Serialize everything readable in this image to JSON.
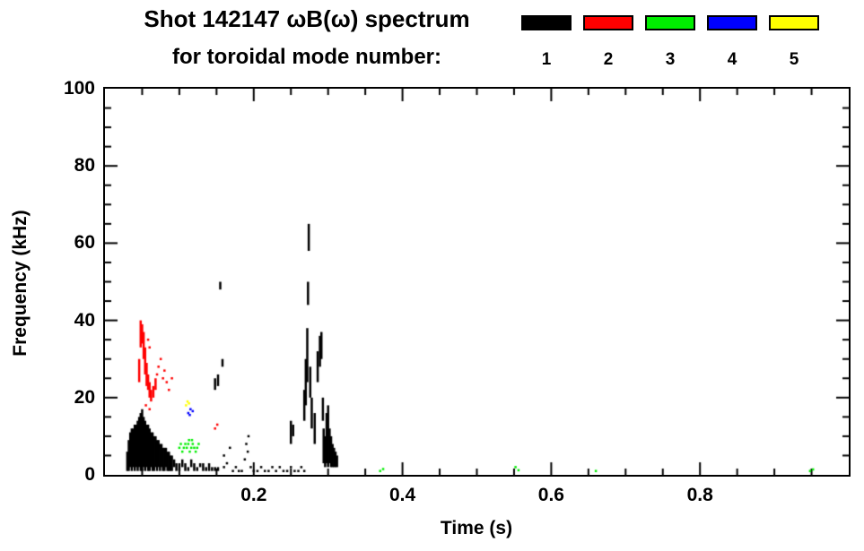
{
  "page": {
    "background": "#ffffff",
    "text_color": "#000000"
  },
  "chart_data": {
    "type": "scatter",
    "title": "Shot 142147 ωB(ω) spectrum",
    "subtitle": "for toroidal mode number:",
    "xlabel": "Time (s)",
    "ylabel": "Frequency (kHz)",
    "xlim": [
      0,
      1.0
    ],
    "ylim": [
      0,
      100
    ],
    "xticks": [
      0.2,
      0.4,
      0.6,
      0.8
    ],
    "xtick_labels": [
      "0.2",
      "0.4",
      "0.6",
      "0.8"
    ],
    "yticks": [
      0,
      20,
      40,
      60,
      80,
      100
    ],
    "ytick_labels": [
      "0",
      "20",
      "40",
      "60",
      "80",
      "100"
    ],
    "x_minor_step": 0.05,
    "y_minor_step": 5,
    "grid": false,
    "legend": {
      "position": "top-right",
      "entries": [
        {
          "label": "1",
          "color": "#000000"
        },
        {
          "label": "2",
          "color": "#ff0000"
        },
        {
          "label": "3",
          "color": "#00ee00"
        },
        {
          "label": "4",
          "color": "#0000ff"
        },
        {
          "label": "5",
          "color": "#ffff00"
        }
      ]
    },
    "series": [
      {
        "name": "mode-1",
        "mode": "1",
        "color": "#000000",
        "segments": [
          [
            0.03,
            1,
            6
          ],
          [
            0.032,
            1,
            9
          ],
          [
            0.034,
            2,
            11
          ],
          [
            0.036,
            1,
            12
          ],
          [
            0.038,
            2,
            12
          ],
          [
            0.04,
            1,
            13
          ],
          [
            0.042,
            2,
            13
          ],
          [
            0.044,
            1,
            14
          ],
          [
            0.046,
            2,
            15
          ],
          [
            0.048,
            1,
            16
          ],
          [
            0.05,
            1,
            17
          ],
          [
            0.052,
            2,
            15
          ],
          [
            0.054,
            1,
            14
          ],
          [
            0.056,
            2,
            13
          ],
          [
            0.058,
            1,
            13
          ],
          [
            0.06,
            1,
            12
          ],
          [
            0.062,
            2,
            11
          ],
          [
            0.064,
            1,
            11
          ],
          [
            0.066,
            1,
            10
          ],
          [
            0.068,
            2,
            10
          ],
          [
            0.07,
            1,
            9
          ],
          [
            0.072,
            2,
            9
          ],
          [
            0.074,
            1,
            8
          ],
          [
            0.076,
            2,
            8
          ],
          [
            0.078,
            1,
            7
          ],
          [
            0.08,
            1,
            7
          ],
          [
            0.082,
            2,
            7
          ],
          [
            0.084,
            1,
            6
          ],
          [
            0.086,
            1,
            6
          ],
          [
            0.088,
            1,
            5
          ],
          [
            0.09,
            1,
            5
          ],
          [
            0.093,
            2,
            4
          ],
          [
            0.096,
            1,
            3
          ],
          [
            0.1,
            1,
            3
          ],
          [
            0.104,
            2,
            4
          ],
          [
            0.108,
            1,
            3
          ],
          [
            0.112,
            1,
            2
          ],
          [
            0.116,
            2,
            4
          ],
          [
            0.12,
            1,
            3
          ],
          [
            0.124,
            1,
            2
          ],
          [
            0.128,
            2,
            3
          ],
          [
            0.132,
            1,
            3
          ],
          [
            0.136,
            1,
            2
          ],
          [
            0.14,
            1,
            3
          ],
          [
            0.144,
            1,
            2
          ],
          [
            0.148,
            1,
            2
          ],
          [
            0.152,
            1,
            2
          ],
          [
            0.148,
            22,
            25
          ],
          [
            0.152,
            23,
            26
          ],
          [
            0.155,
            48,
            50
          ],
          [
            0.158,
            28,
            30
          ],
          [
            0.25,
            8,
            14
          ],
          [
            0.253,
            10,
            13
          ],
          [
            0.268,
            14,
            22
          ],
          [
            0.27,
            18,
            30
          ],
          [
            0.272,
            24,
            38
          ],
          [
            0.273,
            44,
            50
          ],
          [
            0.274,
            58,
            65
          ],
          [
            0.276,
            20,
            28
          ],
          [
            0.278,
            12,
            20
          ],
          [
            0.282,
            8,
            16
          ],
          [
            0.286,
            24,
            32
          ],
          [
            0.289,
            28,
            36
          ],
          [
            0.291,
            30,
            37
          ],
          [
            0.293,
            14,
            20
          ],
          [
            0.294,
            3,
            12
          ],
          [
            0.296,
            2,
            10
          ],
          [
            0.298,
            3,
            16
          ],
          [
            0.3,
            2,
            18
          ],
          [
            0.302,
            3,
            12
          ],
          [
            0.304,
            2,
            10
          ],
          [
            0.306,
            2,
            8
          ],
          [
            0.308,
            2,
            7
          ],
          [
            0.31,
            2,
            6
          ],
          [
            0.312,
            2,
            5
          ]
        ],
        "points": [
          [
            0.16,
            2
          ],
          [
            0.16,
            5
          ],
          [
            0.164,
            3
          ],
          [
            0.168,
            7
          ],
          [
            0.172,
            1
          ],
          [
            0.176,
            2
          ],
          [
            0.18,
            1
          ],
          [
            0.184,
            1
          ],
          [
            0.188,
            4
          ],
          [
            0.19,
            8
          ],
          [
            0.192,
            6
          ],
          [
            0.193,
            10
          ],
          [
            0.196,
            2
          ],
          [
            0.2,
            1
          ],
          [
            0.205,
            1
          ],
          [
            0.21,
            2
          ],
          [
            0.215,
            1
          ],
          [
            0.22,
            1
          ],
          [
            0.225,
            2
          ],
          [
            0.23,
            1
          ],
          [
            0.235,
            2
          ],
          [
            0.24,
            1
          ],
          [
            0.245,
            1
          ],
          [
            0.25,
            2
          ],
          [
            0.255,
            1
          ],
          [
            0.26,
            1
          ],
          [
            0.264,
            2
          ],
          [
            0.268,
            1
          ]
        ]
      },
      {
        "name": "mode-2",
        "mode": "2",
        "color": "#ff0000",
        "segments": [
          [
            0.046,
            24,
            30
          ],
          [
            0.048,
            33,
            40
          ],
          [
            0.05,
            34,
            39
          ],
          [
            0.052,
            30,
            37
          ],
          [
            0.054,
            26,
            33
          ],
          [
            0.056,
            23,
            29
          ],
          [
            0.058,
            22,
            26
          ],
          [
            0.06,
            20,
            24
          ],
          [
            0.062,
            19,
            22
          ],
          [
            0.065,
            20,
            23
          ],
          [
            0.068,
            22,
            25
          ]
        ],
        "points": [
          [
            0.055,
            18
          ],
          [
            0.058,
            35
          ],
          [
            0.06,
            33
          ],
          [
            0.06,
            17
          ],
          [
            0.07,
            26
          ],
          [
            0.072,
            28
          ],
          [
            0.075,
            30
          ],
          [
            0.078,
            25
          ],
          [
            0.08,
            27
          ],
          [
            0.083,
            24
          ],
          [
            0.086,
            22
          ],
          [
            0.09,
            25
          ],
          [
            0.148,
            12
          ],
          [
            0.151,
            13
          ]
        ]
      },
      {
        "name": "mode-3",
        "mode": "3",
        "color": "#00ee00",
        "segments": [],
        "points": [
          [
            0.1,
            7
          ],
          [
            0.102,
            8
          ],
          [
            0.104,
            6
          ],
          [
            0.106,
            7
          ],
          [
            0.108,
            8
          ],
          [
            0.11,
            7
          ],
          [
            0.112,
            8
          ],
          [
            0.114,
            6
          ],
          [
            0.116,
            7
          ],
          [
            0.118,
            8
          ],
          [
            0.12,
            7
          ],
          [
            0.122,
            6
          ],
          [
            0.124,
            7
          ],
          [
            0.126,
            8
          ],
          [
            0.113,
            9
          ],
          [
            0.117,
            9
          ],
          [
            0.37,
            1
          ],
          [
            0.374,
            1.5
          ],
          [
            0.552,
            2
          ],
          [
            0.556,
            1.2
          ],
          [
            0.66,
            1
          ],
          [
            0.948,
            1
          ],
          [
            0.952,
            1.4
          ]
        ]
      },
      {
        "name": "mode-4",
        "mode": "4",
        "color": "#0000ff",
        "segments": [],
        "points": [
          [
            0.112,
            16
          ],
          [
            0.114,
            15.5
          ],
          [
            0.115,
            17
          ],
          [
            0.118,
            16.5
          ]
        ]
      },
      {
        "name": "mode-5",
        "mode": "5",
        "color": "#ffff00",
        "segments": [],
        "points": [
          [
            0.109,
            18
          ],
          [
            0.111,
            19
          ],
          [
            0.113,
            18.5
          ]
        ]
      }
    ]
  }
}
